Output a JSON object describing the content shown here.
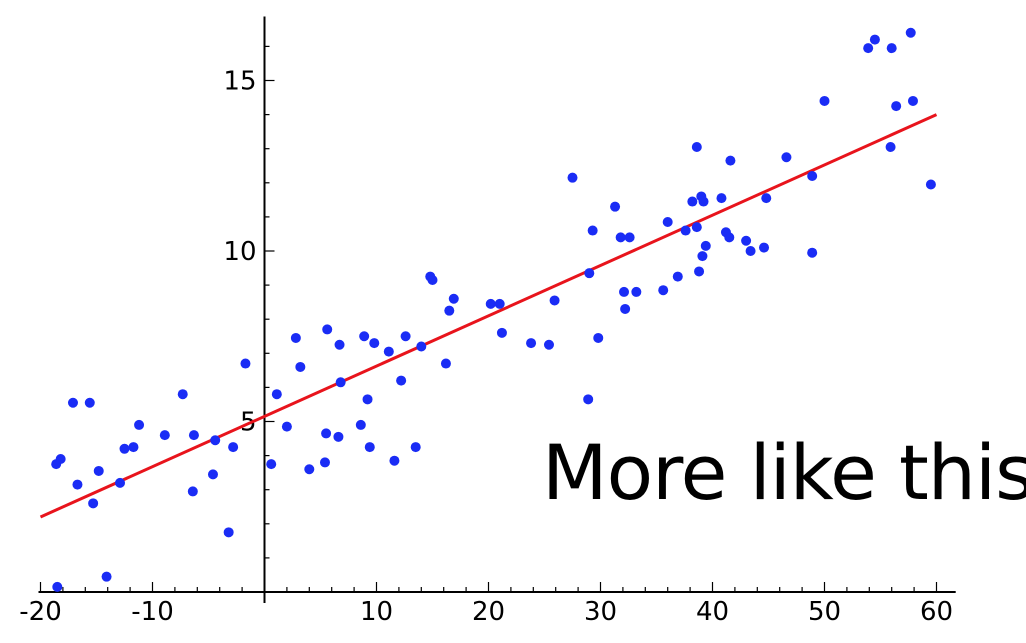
{
  "chart_data": {
    "type": "scatter",
    "title": "",
    "xlabel": "",
    "ylabel": "",
    "xlim": [
      -20,
      61
    ],
    "ylim": [
      0.5,
      16.7
    ],
    "xticks": [
      -20,
      -10,
      10,
      20,
      30,
      40,
      50,
      60
    ],
    "yticks": [
      5,
      10,
      15
    ],
    "y_minor_step": 1,
    "grid": false,
    "colors": {
      "points": "#1a2cf5",
      "fit_line": "#e8141c",
      "axes": "#000000"
    },
    "fit_line": {
      "x": [
        -20,
        60
      ],
      "y": [
        2.2,
        14.0
      ]
    },
    "points": [
      [
        -18.6,
        3.75
      ],
      [
        -18.2,
        3.9
      ],
      [
        -17.1,
        5.55
      ],
      [
        -16.7,
        3.15
      ],
      [
        -15.6,
        5.55
      ],
      [
        -15.3,
        2.6
      ],
      [
        -14.8,
        3.55
      ],
      [
        -12.9,
        3.2
      ],
      [
        -12.5,
        4.2
      ],
      [
        -11.7,
        4.25
      ],
      [
        -11.2,
        4.9
      ],
      [
        -8.9,
        4.6
      ],
      [
        -7.3,
        5.8
      ],
      [
        -6.4,
        2.95
      ],
      [
        -6.3,
        4.6
      ],
      [
        -4.6,
        3.45
      ],
      [
        -4.4,
        4.45
      ],
      [
        -3.2,
        1.75
      ],
      [
        -2.8,
        4.25
      ],
      [
        -1.7,
        6.7
      ],
      [
        0.6,
        3.75
      ],
      [
        1.1,
        5.8
      ],
      [
        2.0,
        4.85
      ],
      [
        2.8,
        7.45
      ],
      [
        3.2,
        6.6
      ],
      [
        4.0,
        3.6
      ],
      [
        5.4,
        3.8
      ],
      [
        5.5,
        4.65
      ],
      [
        5.6,
        7.7
      ],
      [
        6.6,
        4.55
      ],
      [
        6.7,
        7.25
      ],
      [
        6.8,
        6.15
      ],
      [
        8.6,
        4.9
      ],
      [
        8.9,
        7.5
      ],
      [
        9.2,
        5.65
      ],
      [
        9.4,
        4.25
      ],
      [
        9.8,
        7.3
      ],
      [
        11.1,
        7.05
      ],
      [
        11.6,
        3.85
      ],
      [
        12.2,
        6.2
      ],
      [
        12.6,
        7.5
      ],
      [
        13.5,
        4.25
      ],
      [
        14.0,
        7.2
      ],
      [
        14.8,
        9.25
      ],
      [
        15.0,
        9.15
      ],
      [
        16.2,
        6.7
      ],
      [
        16.5,
        8.25
      ],
      [
        16.9,
        8.6
      ],
      [
        20.2,
        8.45
      ],
      [
        21.0,
        8.45
      ],
      [
        21.2,
        7.6
      ],
      [
        23.8,
        7.3
      ],
      [
        25.4,
        7.25
      ],
      [
        25.9,
        8.55
      ],
      [
        27.5,
        12.15
      ],
      [
        28.9,
        5.65
      ],
      [
        29.0,
        9.35
      ],
      [
        29.3,
        10.6
      ],
      [
        29.8,
        7.45
      ],
      [
        31.3,
        11.3
      ],
      [
        31.8,
        10.4
      ],
      [
        32.1,
        8.8
      ],
      [
        32.2,
        8.3
      ],
      [
        32.6,
        10.4
      ],
      [
        33.2,
        8.8
      ],
      [
        35.6,
        8.85
      ],
      [
        36.0,
        10.85
      ],
      [
        36.9,
        9.25
      ],
      [
        37.6,
        10.6
      ],
      [
        38.2,
        11.45
      ],
      [
        38.6,
        10.7
      ],
      [
        38.6,
        13.05
      ],
      [
        38.8,
        9.4
      ],
      [
        39.0,
        11.6
      ],
      [
        39.1,
        9.85
      ],
      [
        39.2,
        11.45
      ],
      [
        39.4,
        10.15
      ],
      [
        40.8,
        11.55
      ],
      [
        41.2,
        10.55
      ],
      [
        41.5,
        10.4
      ],
      [
        41.6,
        12.65
      ],
      [
        43.0,
        10.3
      ],
      [
        43.4,
        10.0
      ],
      [
        44.6,
        10.1
      ],
      [
        44.8,
        11.55
      ],
      [
        46.6,
        12.75
      ],
      [
        48.9,
        12.2
      ],
      [
        48.9,
        9.95
      ],
      [
        50.0,
        14.4
      ],
      [
        53.9,
        15.95
      ],
      [
        54.5,
        16.2
      ],
      [
        55.9,
        13.05
      ],
      [
        56.0,
        15.95
      ],
      [
        56.4,
        14.25
      ],
      [
        57.7,
        16.4
      ],
      [
        57.9,
        14.4
      ],
      [
        59.5,
        11.95
      ],
      [
        -18.5,
        0.15
      ],
      [
        -14.1,
        0.45
      ]
    ]
  },
  "overlay": {
    "text": "More like this"
  }
}
